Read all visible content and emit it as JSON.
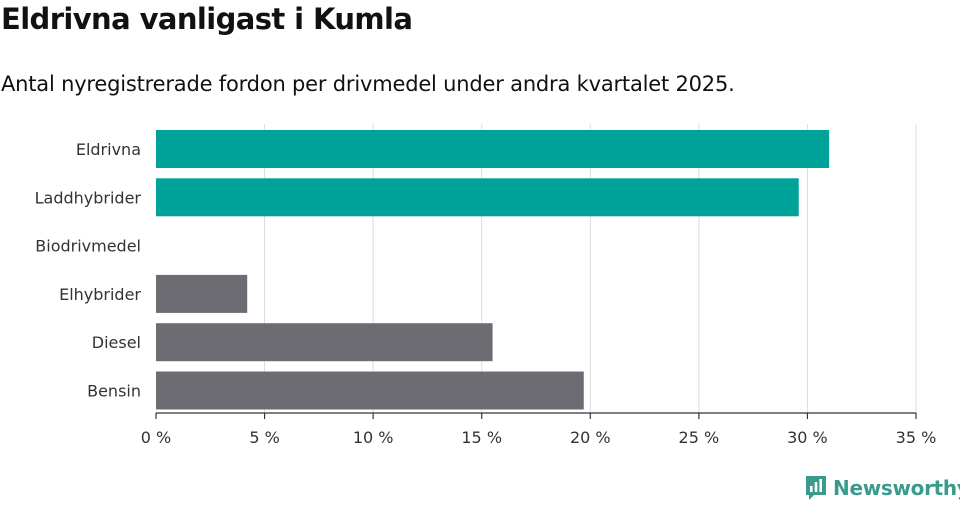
{
  "header": {
    "title": "Eldrivna vanligast i Kumla",
    "subtitle": "Antal nyregistrerade fordon per drivmedel under andra kvartalet 2025."
  },
  "brand": {
    "name": "Newsworthy",
    "logo_icon": "newsworthy-chart-icon",
    "color": "#3a9a8c"
  },
  "chart_data": {
    "type": "bar",
    "orientation": "horizontal",
    "title": "Eldrivna vanligast i Kumla",
    "subtitle": "Antal nyregistrerade fordon per drivmedel under andra kvartalet 2025.",
    "categories": [
      "Eldrivna",
      "Laddhybrider",
      "Biodrivmedel",
      "Elhybrider",
      "Diesel",
      "Bensin"
    ],
    "values": [
      31.0,
      29.6,
      0,
      4.2,
      15.5,
      19.7
    ],
    "colors": [
      "#00a39a",
      "#00a39a",
      "#00a39a",
      "#6d6c73",
      "#6d6c73",
      "#6d6c73"
    ],
    "xlim": [
      0,
      35
    ],
    "x_ticks": [
      0,
      5,
      10,
      15,
      20,
      25,
      30,
      35
    ],
    "x_tick_labels": [
      "0 %",
      "5 %",
      "10 %",
      "15 %",
      "20 %",
      "25 %",
      "30 %",
      "35 %"
    ],
    "xlabel": "",
    "ylabel": "",
    "grid": true,
    "legend": "none"
  }
}
